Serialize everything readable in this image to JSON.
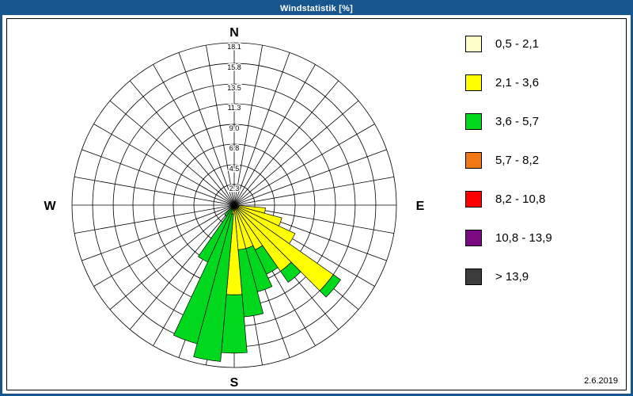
{
  "window": {
    "title": "Windstatistik [%]",
    "date": "2.6.2019",
    "titlebar_color": "#17568F",
    "border_color": "#17568F"
  },
  "compass": {
    "north": "N",
    "east": "E",
    "south": "S",
    "west": "W"
  },
  "chart_data": {
    "type": "windrose",
    "title": "Windstatistik [%]",
    "units": "%",
    "sectors_per_circle": 36,
    "grid": true,
    "legend_position": "right",
    "rmax": 18.1,
    "ring_values": [
      2.3,
      4.5,
      6.8,
      9.0,
      11.3,
      13.5,
      15.8,
      18.1
    ],
    "ring_labels": [
      "2.3",
      "4.5",
      "6.8",
      "9.0",
      "11.3",
      "13.5",
      "15.8",
      "18.1"
    ],
    "speed_classes": [
      {
        "label": "0,5 - 2,1",
        "color": "#FFFFC8"
      },
      {
        "label": "2,1 - 3,6",
        "color": "#FFFF00"
      },
      {
        "label": "3,6 - 5,7",
        "color": "#00D81E"
      },
      {
        "label": "5,7 - 8,2",
        "color": "#F07814"
      },
      {
        "label": "8,2 - 10,8",
        "color": "#FE0000"
      },
      {
        "label": "10,8 - 13,9",
        "color": "#7B0A82"
      },
      {
        "label": "> 13,9",
        "color": "#3C3C3C"
      }
    ],
    "petals": [
      {
        "dir": 100,
        "segments": [
          [
            1,
            3.5
          ]
        ]
      },
      {
        "dir": 110,
        "segments": [
          [
            0,
            0.5
          ],
          [
            1,
            5.0
          ]
        ]
      },
      {
        "dir": 120,
        "segments": [
          [
            0,
            0.5
          ],
          [
            1,
            7.0
          ]
        ]
      },
      {
        "dir": 130,
        "segments": [
          [
            0,
            0.5
          ],
          [
            1,
            13.0
          ],
          [
            2,
            1.0
          ]
        ]
      },
      {
        "dir": 140,
        "segments": [
          [
            1,
            9.0
          ],
          [
            2,
            1.5
          ]
        ]
      },
      {
        "dir": 150,
        "segments": [
          [
            1,
            5.5
          ],
          [
            2,
            3.0
          ]
        ]
      },
      {
        "dir": 160,
        "segments": [
          [
            1,
            5.0
          ],
          [
            2,
            5.0
          ]
        ]
      },
      {
        "dir": 170,
        "segments": [
          [
            1,
            5.0
          ],
          [
            2,
            7.5
          ]
        ]
      },
      {
        "dir": 180,
        "segments": [
          [
            1,
            10.0
          ],
          [
            2,
            6.5
          ]
        ]
      },
      {
        "dir": 190,
        "segments": [
          [
            1,
            1.0
          ],
          [
            2,
            16.5
          ]
        ]
      },
      {
        "dir": 200,
        "segments": [
          [
            2,
            16.0
          ]
        ]
      },
      {
        "dir": 210,
        "segments": [
          [
            2,
            7.0
          ]
        ]
      },
      {
        "dir": 220,
        "segments": [
          [
            2,
            1.5
          ]
        ]
      }
    ]
  }
}
